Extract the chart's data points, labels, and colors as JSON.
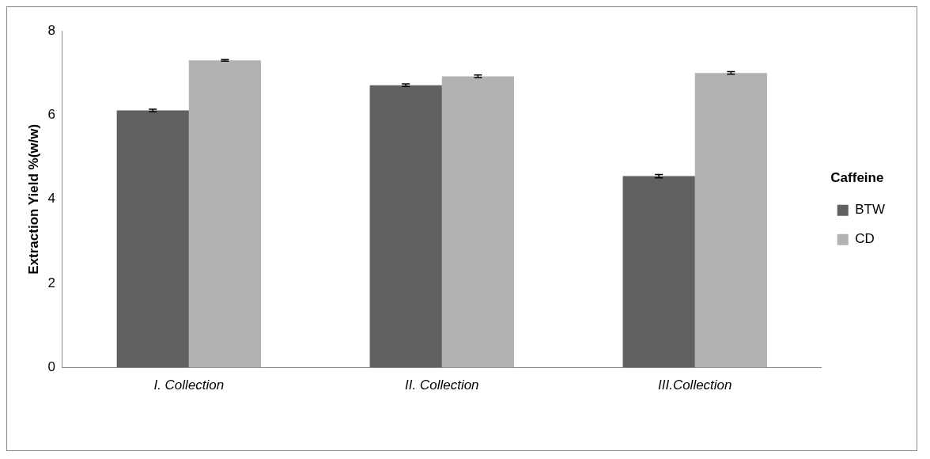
{
  "chart_data": {
    "type": "bar",
    "ylabel": "Extraction Yield %(w/w)",
    "legend_title": "Caffeine",
    "categories": [
      "I. Collection",
      "II. Collection",
      "III.Collection"
    ],
    "series": [
      {
        "name": "BTW",
        "color": "#606060",
        "values": [
          6.11,
          6.71,
          4.55
        ],
        "errors": [
          0.03,
          0.03,
          0.04
        ]
      },
      {
        "name": "CD",
        "color": "#b2b2b2",
        "values": [
          7.3,
          6.92,
          7.0
        ],
        "errors": [
          0.02,
          0.03,
          0.03
        ]
      }
    ],
    "ylim": [
      0,
      8
    ],
    "yticks": [
      0,
      2,
      4,
      6,
      8
    ],
    "grid": false,
    "legend": "right"
  }
}
